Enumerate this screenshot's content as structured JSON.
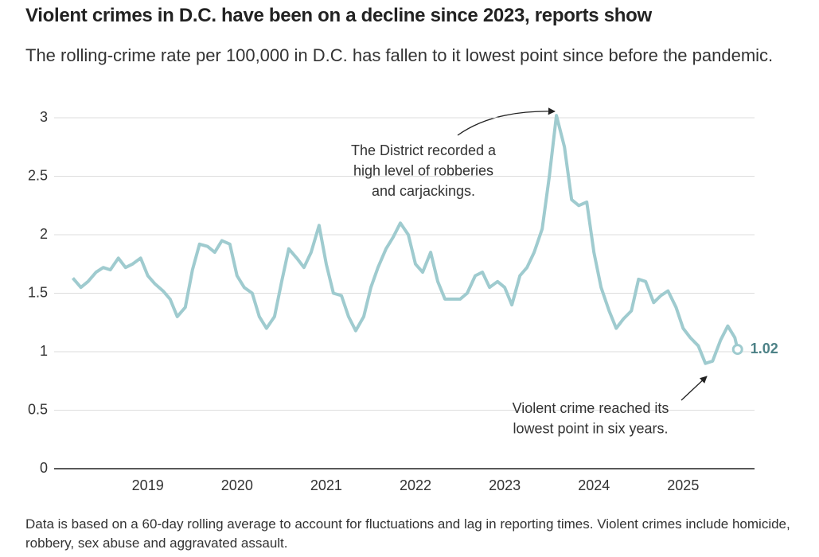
{
  "chart_data": {
    "type": "line",
    "title": "Violent crimes in D.C. have been on a decline since 2023, reports show",
    "subtitle": "The rolling-crime rate per 100,000 in D.C. has fallen to it lowest point since before the pandemic.",
    "note": "Data is based on a 60-day rolling average to account for fluctuations and lag in reporting times. Violent crimes include homicide, robbery, sex abuse and aggravated assault.",
    "annotations": [
      {
        "lines": [
          "The District recorded a",
          "high level of robberies",
          "and carjackings."
        ]
      },
      {
        "lines": [
          "Violent crime reached its",
          "lowest point in six years."
        ]
      }
    ],
    "x": [
      2018.16,
      2018.25,
      2018.33,
      2018.42,
      2018.5,
      2018.58,
      2018.67,
      2018.75,
      2018.83,
      2018.92,
      2019,
      2019.08,
      2019.17,
      2019.25,
      2019.33,
      2019.42,
      2019.5,
      2019.58,
      2019.67,
      2019.75,
      2019.83,
      2019.92,
      2020,
      2020.08,
      2020.17,
      2020.25,
      2020.33,
      2020.42,
      2020.5,
      2020.58,
      2020.67,
      2020.75,
      2020.83,
      2020.92,
      2021,
      2021.08,
      2021.17,
      2021.25,
      2021.33,
      2021.42,
      2021.5,
      2021.58,
      2021.67,
      2021.75,
      2021.83,
      2021.92,
      2022,
      2022.08,
      2022.17,
      2022.25,
      2022.33,
      2022.42,
      2022.5,
      2022.58,
      2022.67,
      2022.75,
      2022.83,
      2022.92,
      2023,
      2023.08,
      2023.17,
      2023.25,
      2023.33,
      2023.42,
      2023.5,
      2023.58,
      2023.67,
      2023.75,
      2023.83,
      2023.92,
      2024,
      2024.08,
      2024.17,
      2024.25,
      2024.33,
      2024.42,
      2024.5,
      2024.58,
      2024.67,
      2024.75,
      2024.83,
      2024.92,
      2025,
      2025.08,
      2025.17,
      2025.25,
      2025.33,
      2025.42,
      2025.5,
      2025.58,
      2025.61
    ],
    "series": [
      {
        "color": "#9fcbcf",
        "label_color": "#4d8287",
        "values": [
          1.63,
          1.55,
          1.6,
          1.68,
          1.72,
          1.7,
          1.8,
          1.72,
          1.75,
          1.8,
          1.65,
          1.58,
          1.52,
          1.45,
          1.3,
          1.38,
          1.7,
          1.92,
          1.9,
          1.85,
          1.95,
          1.92,
          1.65,
          1.55,
          1.5,
          1.3,
          1.2,
          1.3,
          1.6,
          1.88,
          1.8,
          1.72,
          1.85,
          2.08,
          1.75,
          1.5,
          1.48,
          1.3,
          1.18,
          1.3,
          1.55,
          1.72,
          1.88,
          1.98,
          2.1,
          2.0,
          1.75,
          1.68,
          1.85,
          1.6,
          1.45,
          1.45,
          1.45,
          1.5,
          1.65,
          1.68,
          1.55,
          1.6,
          1.55,
          1.4,
          1.65,
          1.72,
          1.85,
          2.05,
          2.5,
          3.02,
          2.75,
          2.3,
          2.25,
          2.28,
          1.85,
          1.55,
          1.35,
          1.2,
          1.28,
          1.35,
          1.62,
          1.6,
          1.42,
          1.48,
          1.52,
          1.38,
          1.2,
          1.12,
          1.05,
          0.9,
          0.92,
          1.1,
          1.22,
          1.12,
          1.02
        ]
      }
    ],
    "xlim": [
      2017.95,
      2025.8
    ],
    "xticks": [
      2019,
      2020,
      2021,
      2022,
      2023,
      2024,
      2025
    ],
    "ylim": [
      0,
      3.05
    ],
    "yticks": [
      0,
      0.5,
      1,
      1.5,
      2,
      2.5,
      3
    ],
    "grid": true
  }
}
